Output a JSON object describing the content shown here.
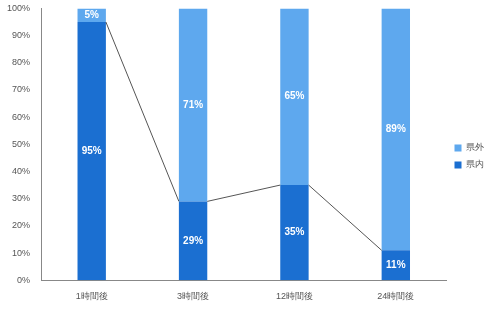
{
  "chart_data": {
    "type": "bar",
    "stacked": true,
    "categories": [
      "1時間後",
      "3時間後",
      "12時間後",
      "24時間後"
    ],
    "series": [
      {
        "name": "県内",
        "color": "#1b6fd1",
        "values": [
          95,
          29,
          35,
          11
        ],
        "value_labels": [
          "95%",
          "29%",
          "35%",
          "11%"
        ]
      },
      {
        "name": "県外",
        "color": "#5ea8ee",
        "values": [
          5,
          71,
          65,
          89
        ],
        "value_labels": [
          "5%",
          "71%",
          "65%",
          "89%"
        ]
      }
    ],
    "ylim": [
      0,
      100
    ],
    "yticks": [
      {
        "value": 0,
        "label": "0%"
      },
      {
        "value": 10,
        "label": "10%"
      },
      {
        "value": 20,
        "label": "20%"
      },
      {
        "value": 30,
        "label": "30%"
      },
      {
        "value": 40,
        "label": "40%"
      },
      {
        "value": 50,
        "label": "50%"
      },
      {
        "value": 60,
        "label": "60%"
      },
      {
        "value": 70,
        "label": "70%"
      },
      {
        "value": 80,
        "label": "80%"
      },
      {
        "value": 90,
        "label": "90%"
      },
      {
        "value": 100,
        "label": "100%"
      }
    ],
    "grid": false,
    "legend": "right",
    "data_labels": true
  }
}
